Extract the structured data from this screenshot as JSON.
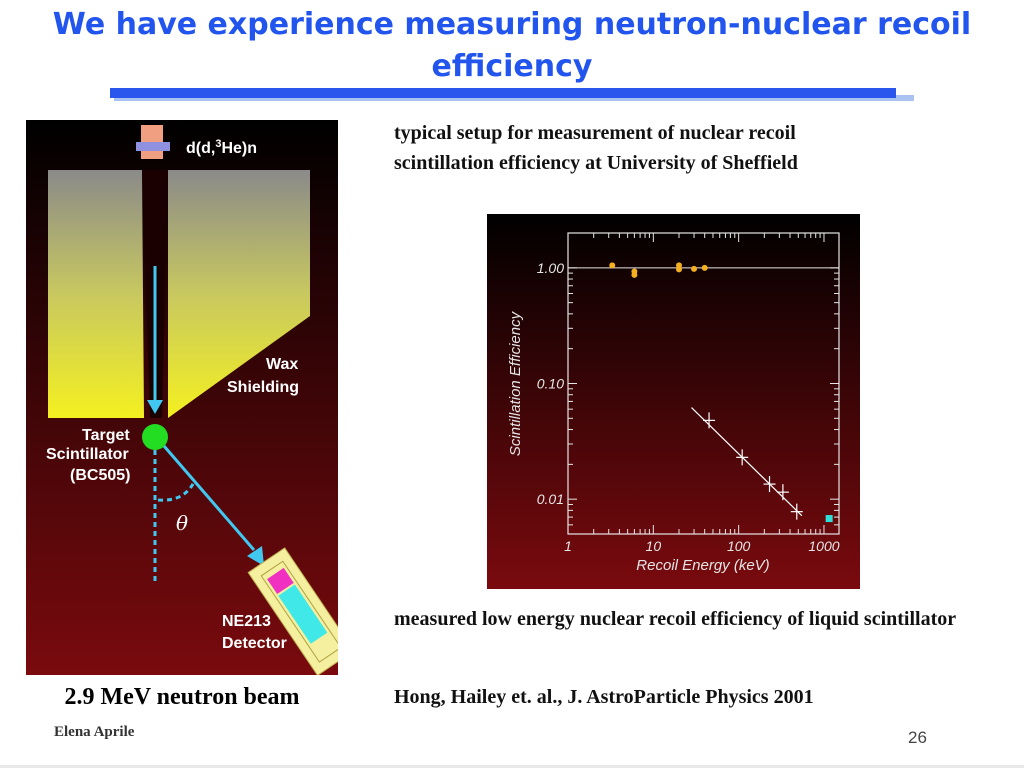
{
  "slide": {
    "title": "We have experience measuring neutron-nuclear recoil efficiency",
    "setup_caption": "typical setup for measurement of nuclear recoil scintillation efficiency at University of Sheffield",
    "result_caption": "measured low energy nuclear recoil efficiency of liquid scintillator",
    "reference": "Hong, Hailey et. al., J. AstroParticle Physics 2001",
    "beam_label": "2.9 MeV neutron beam",
    "author": "Elena Aprile",
    "page_number": "26"
  },
  "diagram": {
    "source_label_a": "d(d,",
    "source_label_sup": "3",
    "source_label_b": "He)n",
    "wax_label_1": "Wax",
    "wax_label_2": "Shielding",
    "target_label_1": "Target",
    "target_label_2": "Scintillator",
    "target_label_3": "(BC505)",
    "angle_label": "θ",
    "detector_label_1": "NE213",
    "detector_label_2": "Detector"
  },
  "colors": {
    "title": "#2255ee",
    "background_top": "#000000",
    "background_bottom": "#7a0a0e",
    "beam": "#40c8f0",
    "wax": "#f4f020",
    "target": "#22dd22",
    "detector_body": "#f4f0a0",
    "detector_cell": "#40e8e8",
    "detector_pmt": "#f030c0",
    "sheffield_points": "#f5b020",
    "hong_point": "#30e0d8"
  },
  "chart_data": {
    "type": "scatter",
    "title": "",
    "xlabel": "Recoil Energy (keV)",
    "ylabel": "Scintillation Efficiency",
    "xscale": "log",
    "yscale": "log",
    "xlim": [
      1,
      1500
    ],
    "ylim": [
      0.005,
      2
    ],
    "x_ticks": [
      "1",
      "10",
      "100",
      "1000"
    ],
    "y_ticks": [
      "0.01",
      "0.10",
      "1.00"
    ],
    "reference_line_y": 1.0,
    "series": [
      {
        "marker": "dot",
        "color": "#f5b020",
        "points": [
          [
            3.3,
            1.05
          ],
          [
            6.0,
            0.93
          ],
          [
            6.0,
            0.87
          ],
          [
            20,
            1.05
          ],
          [
            20,
            0.97
          ],
          [
            30,
            0.98
          ],
          [
            40,
            1.0
          ]
        ]
      },
      {
        "marker": "cross",
        "color": "#ffffff",
        "points": [
          [
            45,
            0.048
          ],
          [
            110,
            0.023
          ],
          [
            230,
            0.0135
          ],
          [
            330,
            0.0115
          ],
          [
            480,
            0.0078
          ]
        ]
      },
      {
        "marker": "square",
        "color": "#30e0d8",
        "points": [
          [
            1150,
            0.0068
          ]
        ]
      }
    ],
    "trend_line": [
      [
        28,
        0.062
      ],
      [
        550,
        0.0072
      ]
    ]
  }
}
